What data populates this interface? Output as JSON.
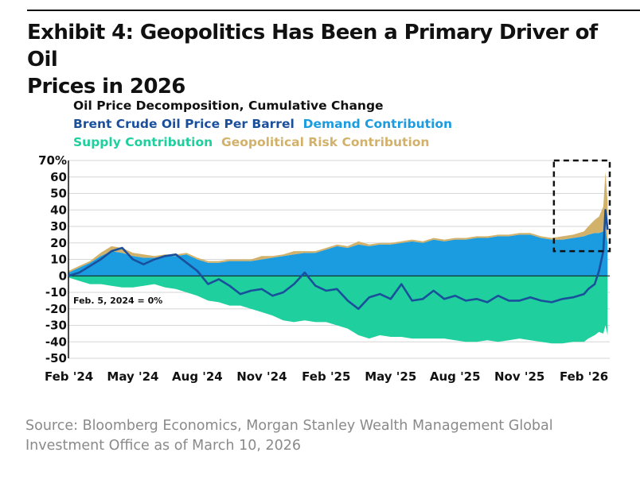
{
  "exhibit": {
    "title_line1": "Exhibit 4: Geopolitics Has Been a Primary Driver of Oil",
    "title_line2": "Prices in 2026"
  },
  "source": {
    "line1": "Source: Bloomberg Economics, Morgan Stanley Wealth Management Global",
    "line2": "Investment Office as of March 10, 2026"
  },
  "colors": {
    "brent": "#1a4f9c",
    "demand": "#1b9be0",
    "supply": "#1fcf9e",
    "geopolitical": "#d2b26b",
    "grid": "#d6d6d6"
  },
  "chart_data": {
    "type": "area",
    "title": "Oil Price Decomposition, Cumulative Change",
    "legend": {
      "brent": "Brent Crude Oil Price Per Barrel",
      "demand": "Demand Contribution",
      "supply": "Supply Contribution",
      "geopolitical": "Geopolitical Risk Contribution"
    },
    "annotation": "Feb. 5, 2024 = 0%",
    "ylim": [
      -50,
      70
    ],
    "y_ticks": [
      "70%",
      "60",
      "50",
      "40",
      "30",
      "20",
      "10",
      "0",
      "-10",
      "-20",
      "-30",
      "-40",
      "-50"
    ],
    "x_ticks": [
      "Feb '24",
      "May '24",
      "Aug '24",
      "Nov '24",
      "Feb '25",
      "May '25",
      "Aug '25",
      "Nov '25",
      "Feb '26"
    ],
    "highlight_box": {
      "x_from": 22.6,
      "x_to": 25.2,
      "y_from": 15,
      "y_to": 70
    },
    "x_months": [
      0,
      0.5,
      1,
      1.5,
      2,
      2.5,
      3,
      3.5,
      4,
      4.5,
      5,
      5.5,
      6,
      6.5,
      7,
      7.5,
      8,
      8.5,
      9,
      9.5,
      10,
      10.5,
      11,
      11.5,
      12,
      12.5,
      13,
      13.5,
      14,
      14.5,
      15,
      15.5,
      16,
      16.5,
      17,
      17.5,
      18,
      18.5,
      19,
      19.5,
      20,
      20.5,
      21,
      21.5,
      22,
      22.5,
      23,
      23.5,
      24,
      24.2,
      24.5,
      24.7,
      24.9,
      25.0,
      25.1
    ],
    "series": [
      {
        "name": "Brent Crude Oil Price Per Barrel",
        "key": "brent",
        "type": "line",
        "values": [
          0,
          2,
          6,
          10,
          15,
          17,
          10,
          7,
          10,
          12,
          13,
          8,
          3,
          -5,
          -2,
          -6,
          -11,
          -9,
          -8,
          -12,
          -10,
          -5,
          2,
          -6,
          -9,
          -8,
          -15,
          -20,
          -13,
          -11,
          -14,
          -5,
          -15,
          -14,
          -9,
          -14,
          -12,
          -15,
          -14,
          -16,
          -12,
          -15,
          -15,
          -13,
          -15,
          -16,
          -14,
          -13,
          -11,
          -8,
          -5,
          3,
          15,
          40,
          28
        ]
      },
      {
        "name": "Demand Contribution",
        "key": "demand",
        "type": "area",
        "values": [
          2,
          5,
          8,
          12,
          15,
          14,
          12,
          11,
          11,
          12,
          12,
          13,
          10,
          8,
          8,
          9,
          9,
          9,
          10,
          11,
          12,
          13,
          14,
          14,
          16,
          18,
          17,
          19,
          18,
          19,
          19,
          20,
          21,
          20,
          22,
          21,
          22,
          22,
          23,
          23,
          24,
          24,
          25,
          25,
          23,
          22,
          22,
          23,
          24,
          25,
          26,
          26,
          27,
          28,
          20
        ]
      },
      {
        "name": "Geopolitical Risk Contribution",
        "key": "geopolitical",
        "type": "area",
        "values": [
          1,
          1,
          1,
          2,
          3,
          3,
          2,
          2,
          1,
          1,
          1,
          1,
          1,
          1,
          1,
          1,
          1,
          1,
          2,
          1,
          1,
          2,
          1,
          1,
          1,
          1,
          1,
          2,
          1,
          1,
          1,
          1,
          1,
          1,
          1,
          1,
          1,
          1,
          1,
          1,
          1,
          1,
          1,
          1,
          1,
          1,
          2,
          2,
          3,
          5,
          8,
          10,
          15,
          35,
          25
        ]
      },
      {
        "name": "Supply Contribution",
        "key": "supply",
        "type": "area",
        "values": [
          -1,
          -3,
          -5,
          -5,
          -6,
          -7,
          -7,
          -6,
          -5,
          -7,
          -8,
          -10,
          -12,
          -15,
          -16,
          -18,
          -18,
          -20,
          -22,
          -24,
          -27,
          -28,
          -27,
          -28,
          -28,
          -30,
          -32,
          -36,
          -38,
          -36,
          -37,
          -37,
          -38,
          -38,
          -38,
          -38,
          -39,
          -40,
          -40,
          -39,
          -40,
          -39,
          -38,
          -39,
          -40,
          -41,
          -41,
          -40,
          -40,
          -38,
          -36,
          -34,
          -35,
          -30,
          -36
        ]
      }
    ]
  }
}
